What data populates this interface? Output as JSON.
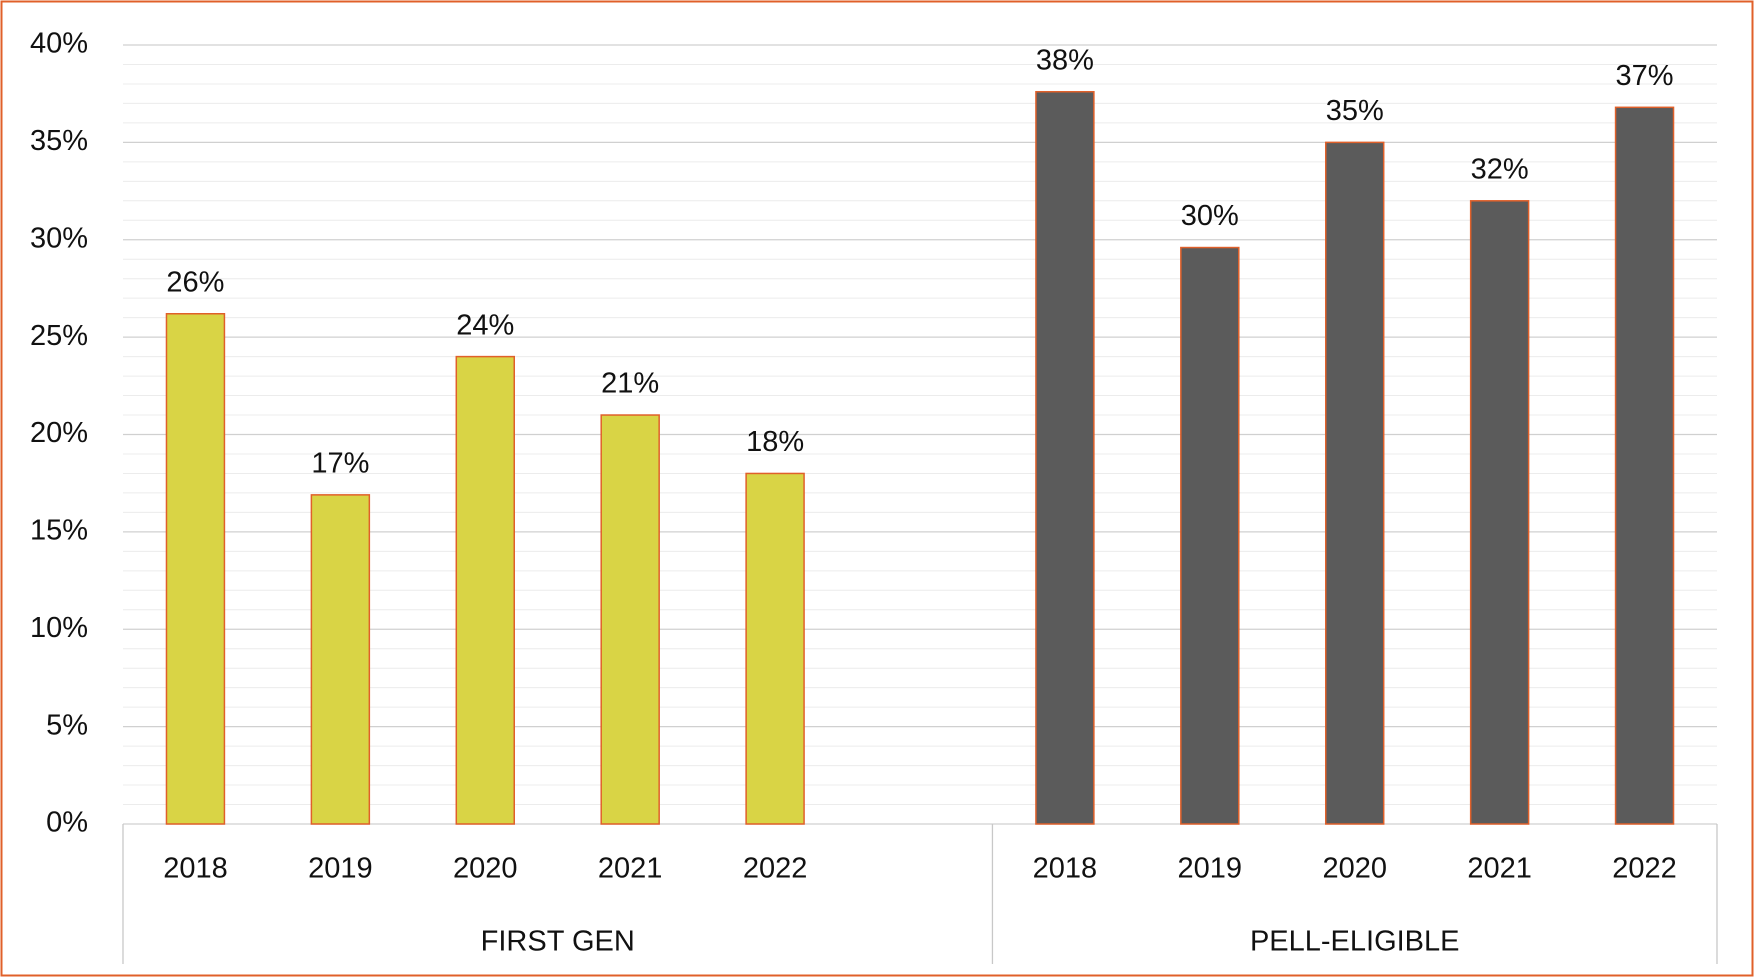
{
  "chart_data": {
    "type": "bar",
    "groups": [
      {
        "name": "FIRST GEN",
        "color": "#d9d445",
        "categories": [
          "2018",
          "2019",
          "2020",
          "2021",
          "2022"
        ],
        "values": [
          26.2,
          16.9,
          24.0,
          21.0,
          18.0
        ],
        "value_labels": [
          "26%",
          "17%",
          "24%",
          "21%",
          "18%"
        ]
      },
      {
        "name": "PELL-ELIGIBLE",
        "color": "#5b5b5b",
        "categories": [
          "2018",
          "2019",
          "2020",
          "2021",
          "2022"
        ],
        "values": [
          37.6,
          29.6,
          35.0,
          32.0,
          36.8
        ],
        "value_labels": [
          "38%",
          "30%",
          "35%",
          "32%",
          "37%"
        ]
      }
    ],
    "bar_edge_color": "#e0602a",
    "ylim": [
      0,
      40
    ],
    "yticks": [
      {
        "value": 0,
        "label": "0%"
      },
      {
        "value": 5,
        "label": "5%"
      },
      {
        "value": 10,
        "label": "10%"
      },
      {
        "value": 15,
        "label": "15%"
      },
      {
        "value": 20,
        "label": "20%"
      },
      {
        "value": 25,
        "label": "25%"
      },
      {
        "value": 30,
        "label": "30%"
      },
      {
        "value": 35,
        "label": "35%"
      },
      {
        "value": 40,
        "label": "40%"
      }
    ],
    "grid": true,
    "minor_grid": true
  }
}
